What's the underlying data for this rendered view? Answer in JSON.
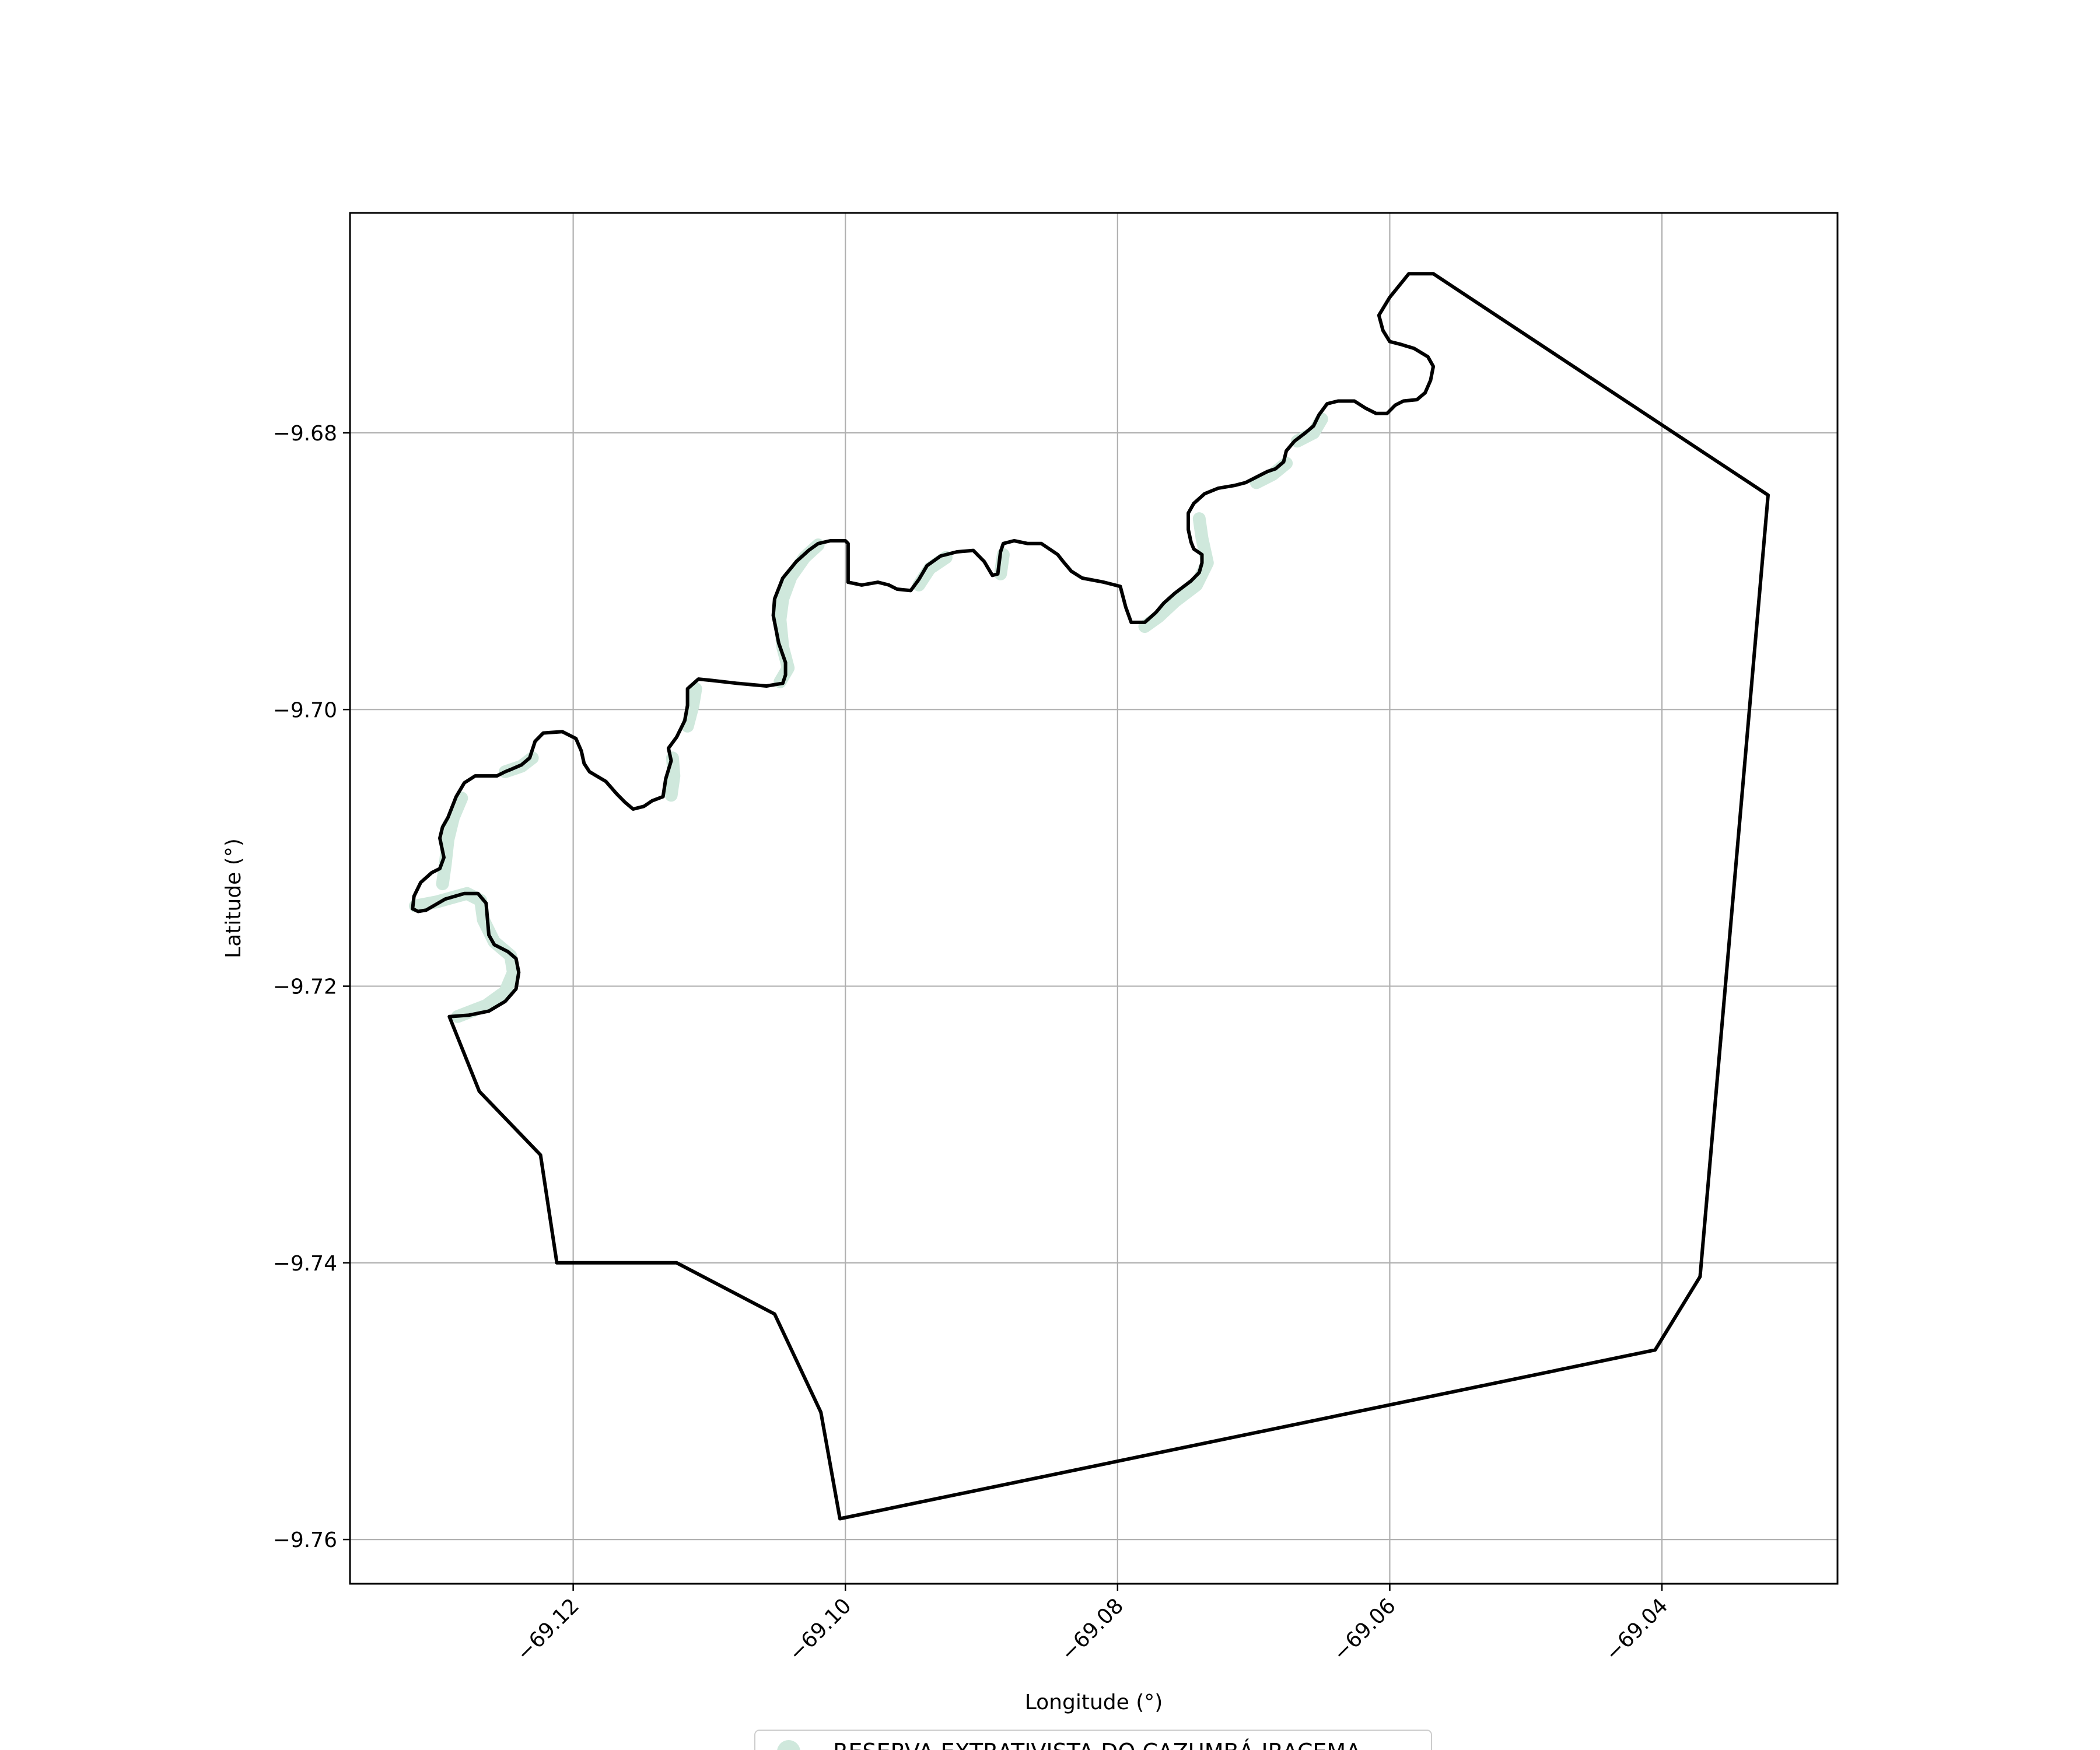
{
  "chart_data": {
    "type": "map",
    "title": "",
    "xlabel": "Longitude (°)",
    "ylabel": "Latitude (°)",
    "xlim": [
      -69.1364,
      -69.0271
    ],
    "ylim": [
      -9.7632,
      -9.6641
    ],
    "grid": true,
    "x_ticks": [
      {
        "value": -69.12,
        "label": "−69.12"
      },
      {
        "value": -69.1,
        "label": "−69.10"
      },
      {
        "value": -69.08,
        "label": "−69.08"
      },
      {
        "value": -69.06,
        "label": "−69.06"
      },
      {
        "value": -69.04,
        "label": "−69.04"
      }
    ],
    "y_ticks": [
      {
        "value": -9.68,
        "label": "−9.68"
      },
      {
        "value": -9.7,
        "label": "−9.70"
      },
      {
        "value": -9.72,
        "label": "−9.72"
      },
      {
        "value": -9.74,
        "label": "−9.74"
      },
      {
        "value": -9.76,
        "label": "−9.76"
      }
    ],
    "legend": {
      "placement": "bottom-center",
      "entries": [
        {
          "label": "RESERVA EXTRATIVISTA DO CAZUMBÁ-IRACEMA",
          "color": "#cfe8dc"
        }
      ]
    },
    "boundary": {
      "color": "#000000",
      "coordinates": [
        [
          -69.0568,
          -9.6685
        ],
        [
          -69.0322,
          -9.6845
        ],
        [
          -69.0372,
          -9.741
        ],
        [
          -69.0405,
          -9.7463
        ],
        [
          -69.1004,
          -9.7585
        ],
        [
          -69.1018,
          -9.7508
        ],
        [
          -69.1052,
          -9.7437
        ],
        [
          -69.1124,
          -9.74
        ],
        [
          -69.1212,
          -9.74
        ],
        [
          -69.1224,
          -9.7322
        ],
        [
          -69.1269,
          -9.7276
        ],
        [
          -69.1291,
          -9.7222
        ],
        [
          -69.1277,
          -9.7221
        ],
        [
          -69.1262,
          -9.7218
        ],
        [
          -69.125,
          -9.7211
        ],
        [
          -69.1242,
          -9.7202
        ],
        [
          -69.124,
          -9.719
        ],
        [
          -69.1242,
          -9.718
        ],
        [
          -69.1248,
          -9.7175
        ],
        [
          -69.1258,
          -9.717
        ],
        [
          -69.1262,
          -9.7163
        ],
        [
          -69.1264,
          -9.714
        ],
        [
          -69.127,
          -9.7133
        ],
        [
          -69.128,
          -9.7133
        ],
        [
          -69.1294,
          -9.7137
        ],
        [
          -69.1308,
          -9.7145
        ],
        [
          -69.1314,
          -9.7146
        ],
        [
          -69.1318,
          -9.7144
        ],
        [
          -69.1317,
          -9.7135
        ],
        [
          -69.1312,
          -9.7125
        ],
        [
          -69.1304,
          -9.7118
        ],
        [
          -69.1298,
          -9.7115
        ],
        [
          -69.1295,
          -9.7107
        ],
        [
          -69.1298,
          -9.7093
        ],
        [
          -69.1296,
          -9.7085
        ],
        [
          -69.1292,
          -9.7078
        ],
        [
          -69.1286,
          -9.7063
        ],
        [
          -69.128,
          -9.7053
        ],
        [
          -69.1272,
          -9.7048
        ],
        [
          -69.1256,
          -9.7048
        ],
        [
          -69.125,
          -9.7045
        ],
        [
          -69.1245,
          -9.7043
        ],
        [
          -69.1238,
          -9.704
        ],
        [
          -69.1232,
          -9.7035
        ],
        [
          -69.1228,
          -9.7023
        ],
        [
          -69.1222,
          -9.7017
        ],
        [
          -69.1208,
          -9.7016
        ],
        [
          -69.1198,
          -9.7021
        ],
        [
          -69.1194,
          -9.703
        ],
        [
          -69.1192,
          -9.7039
        ],
        [
          -69.1188,
          -9.7045
        ],
        [
          -69.1176,
          -9.7052
        ],
        [
          -69.1168,
          -9.7061
        ],
        [
          -69.1162,
          -9.7067
        ],
        [
          -69.1156,
          -9.7072
        ],
        [
          -69.1148,
          -9.707
        ],
        [
          -69.1142,
          -9.7066
        ],
        [
          -69.1134,
          -9.7063
        ],
        [
          -69.1132,
          -9.705
        ],
        [
          -69.1128,
          -9.7037
        ],
        [
          -69.113,
          -9.7028
        ],
        [
          -69.1124,
          -9.702
        ],
        [
          -69.1118,
          -9.7008
        ],
        [
          -69.1116,
          -9.6997
        ],
        [
          -69.1116,
          -9.6985
        ],
        [
          -69.1108,
          -9.6978
        ],
        [
          -69.1098,
          -9.6979
        ],
        [
          -69.108,
          -9.6981
        ],
        [
          -69.1058,
          -9.6983
        ],
        [
          -69.1046,
          -9.6981
        ],
        [
          -69.1044,
          -9.6975
        ],
        [
          -69.1044,
          -9.6966
        ],
        [
          -69.1049,
          -9.6952
        ],
        [
          -69.1053,
          -9.6932
        ],
        [
          -69.1052,
          -9.692
        ],
        [
          -69.1046,
          -9.6905
        ],
        [
          -69.1036,
          -9.6893
        ],
        [
          -69.1027,
          -9.6885
        ],
        [
          -69.102,
          -9.688
        ],
        [
          -69.1011,
          -9.6878
        ],
        [
          -69.1,
          -9.6878
        ],
        [
          -69.0998,
          -9.688
        ],
        [
          -69.0998,
          -9.6895
        ],
        [
          -69.0998,
          -9.6908
        ],
        [
          -69.0988,
          -9.691
        ],
        [
          -69.0976,
          -9.6908
        ],
        [
          -69.0968,
          -9.691
        ],
        [
          -69.0962,
          -9.6913
        ],
        [
          -69.0952,
          -9.6914
        ],
        [
          -69.0946,
          -9.6906
        ],
        [
          -69.094,
          -9.6896
        ],
        [
          -69.093,
          -9.6889
        ],
        [
          -69.0918,
          -9.6886
        ],
        [
          -69.0906,
          -9.6885
        ],
        [
          -69.0898,
          -9.6893
        ],
        [
          -69.0892,
          -9.6903
        ],
        [
          -69.0888,
          -9.6902
        ],
        [
          -69.0886,
          -9.6886
        ],
        [
          -69.0884,
          -9.688
        ],
        [
          -69.0876,
          -9.6878
        ],
        [
          -69.0866,
          -9.688
        ],
        [
          -69.0856,
          -9.688
        ],
        [
          -69.0844,
          -9.6888
        ],
        [
          -69.084,
          -9.6893
        ],
        [
          -69.0834,
          -9.69
        ],
        [
          -69.0826,
          -9.6905
        ],
        [
          -69.081,
          -9.6908
        ],
        [
          -69.0798,
          -9.6911
        ],
        [
          -69.0794,
          -9.6926
        ],
        [
          -69.079,
          -9.6937
        ],
        [
          -69.078,
          -9.6937
        ],
        [
          -69.0772,
          -9.693
        ],
        [
          -69.0766,
          -9.6923
        ],
        [
          -69.0758,
          -9.6916
        ],
        [
          -69.0746,
          -9.6907
        ],
        [
          -69.074,
          -9.6901
        ],
        [
          -69.0738,
          -9.6894
        ],
        [
          -69.0738,
          -9.6888
        ],
        [
          -69.0744,
          -9.6884
        ],
        [
          -69.0746,
          -9.6879
        ],
        [
          -69.0748,
          -9.687
        ],
        [
          -69.0748,
          -9.6858
        ],
        [
          -69.0744,
          -9.6851
        ],
        [
          -69.0736,
          -9.6844
        ],
        [
          -69.0726,
          -9.684
        ],
        [
          -69.0714,
          -9.6838
        ],
        [
          -69.0706,
          -9.6836
        ],
        [
          -69.0698,
          -9.6832
        ],
        [
          -69.069,
          -9.6828
        ],
        [
          -69.0684,
          -9.6826
        ],
        [
          -69.0678,
          -9.6821
        ],
        [
          -69.0676,
          -9.6813
        ],
        [
          -69.067,
          -9.6806
        ],
        [
          -69.0662,
          -9.68
        ],
        [
          -69.0656,
          -9.6795
        ],
        [
          -69.0652,
          -9.6787
        ],
        [
          -69.0646,
          -9.6779
        ],
        [
          -69.0638,
          -9.6777
        ],
        [
          -69.0626,
          -9.6777
        ],
        [
          -69.0618,
          -9.6782
        ],
        [
          -69.061,
          -9.6786
        ],
        [
          -69.0602,
          -9.6786
        ],
        [
          -69.0596,
          -9.678
        ],
        [
          -69.059,
          -9.6777
        ],
        [
          -69.058,
          -9.6776
        ],
        [
          -69.0574,
          -9.6771
        ],
        [
          -69.057,
          -9.6762
        ],
        [
          -69.0568,
          -9.6752
        ],
        [
          -69.0572,
          -9.6745
        ],
        [
          -69.0582,
          -9.6739
        ],
        [
          -69.0592,
          -9.6736
        ],
        [
          -69.06,
          -9.6734
        ],
        [
          -69.0605,
          -9.6726
        ],
        [
          -69.0608,
          -9.6715
        ],
        [
          -69.06,
          -9.6702
        ],
        [
          -69.0586,
          -9.6685
        ],
        [
          -69.0568,
          -9.6685
        ]
      ]
    },
    "shoreline_highlights": [
      [
        [
          -69.1285,
          -9.7222
        ],
        [
          -69.1264,
          -9.7214
        ],
        [
          -69.125,
          -9.7204
        ],
        [
          -69.1244,
          -9.719
        ],
        [
          -69.1246,
          -9.7178
        ],
        [
          -69.1258,
          -9.7168
        ],
        [
          -69.1266,
          -9.7152
        ],
        [
          -69.1268,
          -9.7138
        ],
        [
          -69.1278,
          -9.7133
        ],
        [
          -69.13,
          -9.7139
        ],
        [
          -69.1316,
          -9.7142
        ]
      ],
      [
        [
          -69.1296,
          -9.7126
        ],
        [
          -69.1294,
          -9.7112
        ],
        [
          -69.1292,
          -9.7094
        ],
        [
          -69.1288,
          -9.7078
        ],
        [
          -69.1282,
          -9.7064
        ]
      ],
      [
        [
          -69.125,
          -9.7045
        ],
        [
          -69.1238,
          -9.7041
        ],
        [
          -69.123,
          -9.7035
        ]
      ],
      [
        [
          -69.1128,
          -9.7062
        ],
        [
          -69.1126,
          -9.7048
        ],
        [
          -69.1127,
          -9.7035
        ]
      ],
      [
        [
          -69.1116,
          -9.7012
        ],
        [
          -69.1112,
          -9.6997
        ],
        [
          -69.111,
          -9.6985
        ]
      ],
      [
        [
          -69.1048,
          -9.698
        ],
        [
          -69.1042,
          -9.697
        ],
        [
          -69.1046,
          -9.6955
        ],
        [
          -69.1048,
          -9.6935
        ],
        [
          -69.1046,
          -9.692
        ],
        [
          -69.104,
          -9.6904
        ],
        [
          -69.103,
          -9.689
        ],
        [
          -69.102,
          -9.6881
        ]
      ],
      [
        [
          -69.0946,
          -9.691
        ],
        [
          -69.0938,
          -9.6898
        ],
        [
          -69.0926,
          -9.689
        ]
      ],
      [
        [
          -69.0886,
          -9.6902
        ],
        [
          -69.0884,
          -9.6888
        ]
      ],
      [
        [
          -69.078,
          -9.694
        ],
        [
          -69.077,
          -9.6933
        ],
        [
          -69.0758,
          -9.6922
        ],
        [
          -69.0742,
          -9.691
        ],
        [
          -69.0734,
          -9.6894
        ],
        [
          -69.0738,
          -9.6876
        ],
        [
          -69.074,
          -9.6862
        ]
      ],
      [
        [
          -69.0698,
          -9.6836
        ],
        [
          -69.0686,
          -9.683
        ],
        [
          -69.0676,
          -9.6822
        ]
      ],
      [
        [
          -69.0668,
          -9.6806
        ],
        [
          -69.0656,
          -9.68
        ],
        [
          -69.065,
          -9.679
        ]
      ]
    ]
  }
}
